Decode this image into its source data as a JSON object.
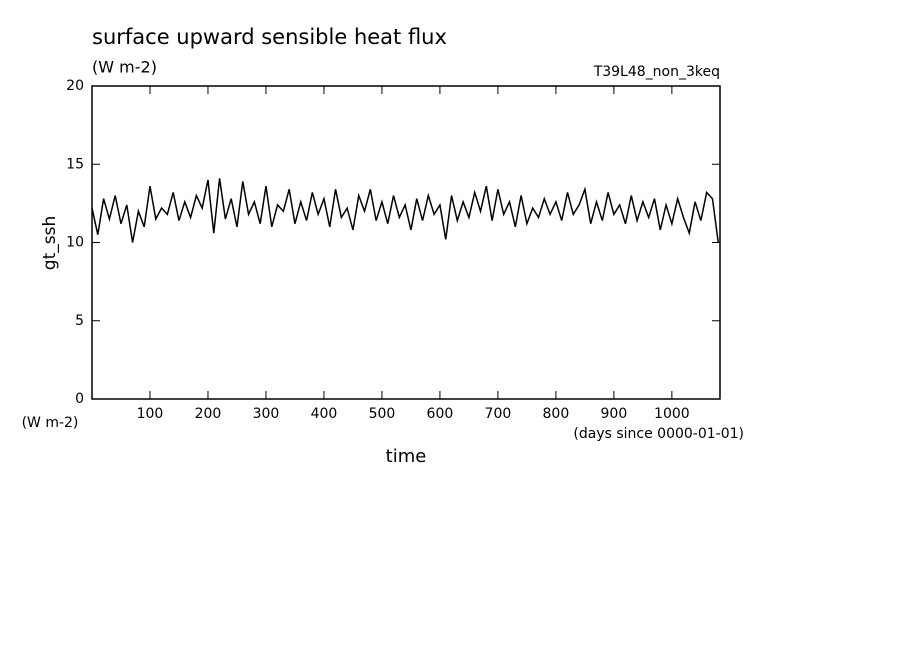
{
  "chart_data": {
    "type": "line",
    "title": "surface upward sensible heat flux",
    "subtitle": "(W m-2)",
    "run_label": "T39L48_non_3keq",
    "y_label": "gt_ssh",
    "y_units": "(W m-2)",
    "x_label": "time",
    "x_units": "(days since 0000-01-01)",
    "x": [
      0,
      10,
      20,
      30,
      40,
      50,
      60,
      70,
      80,
      90,
      100,
      110,
      120,
      130,
      140,
      150,
      160,
      170,
      180,
      190,
      200,
      210,
      220,
      230,
      240,
      250,
      260,
      270,
      280,
      290,
      300,
      310,
      320,
      330,
      340,
      350,
      360,
      370,
      380,
      390,
      400,
      410,
      420,
      430,
      440,
      450,
      460,
      470,
      480,
      490,
      500,
      510,
      520,
      530,
      540,
      550,
      560,
      570,
      580,
      590,
      600,
      610,
      620,
      630,
      640,
      650,
      660,
      670,
      680,
      690,
      700,
      710,
      720,
      730,
      740,
      750,
      760,
      770,
      780,
      790,
      800,
      810,
      820,
      830,
      840,
      850,
      860,
      870,
      880,
      890,
      900,
      910,
      920,
      930,
      940,
      950,
      960,
      970,
      980,
      990,
      1000,
      1010,
      1020,
      1030,
      1040,
      1050,
      1060,
      1070,
      1080
    ],
    "series": [
      {
        "name": "gt_ssh",
        "color": "#000000",
        "values": [
          12.2,
          10.5,
          12.8,
          11.5,
          13.0,
          11.2,
          12.4,
          10.0,
          12.0,
          11.0,
          13.6,
          11.5,
          12.2,
          11.8,
          13.2,
          11.4,
          12.6,
          11.6,
          13.0,
          12.2,
          14.0,
          10.6,
          14.1,
          11.5,
          12.8,
          11.0,
          13.9,
          11.8,
          12.6,
          11.2,
          13.6,
          11.0,
          12.4,
          12.0,
          13.4,
          11.2,
          12.6,
          11.4,
          13.2,
          11.8,
          12.8,
          11.0,
          13.4,
          11.6,
          12.2,
          10.8,
          13.0,
          12.0,
          13.4,
          11.4,
          12.6,
          11.2,
          13.0,
          11.6,
          12.4,
          10.8,
          12.8,
          11.4,
          13.0,
          11.8,
          12.4,
          10.2,
          13.0,
          11.4,
          12.6,
          11.6,
          13.2,
          12.0,
          13.6,
          11.4,
          13.4,
          11.8,
          12.6,
          11.0,
          13.0,
          11.2,
          12.2,
          11.6,
          12.8,
          11.8,
          12.6,
          11.4,
          13.2,
          11.8,
          12.4,
          13.4,
          11.2,
          12.6,
          11.4,
          13.2,
          11.8,
          12.4,
          11.2,
          13.0,
          11.4,
          12.6,
          11.6,
          12.8,
          10.8,
          12.4,
          11.2,
          12.8,
          11.6,
          10.6,
          12.6,
          11.4,
          13.2,
          12.8,
          10.0
        ]
      }
    ],
    "xlim": [
      0,
      1083
    ],
    "xticks": [
      100,
      200,
      300,
      400,
      500,
      600,
      700,
      800,
      900,
      1000
    ],
    "ylim": [
      0,
      20
    ],
    "yticks": [
      0,
      5,
      10,
      15,
      20
    ]
  }
}
